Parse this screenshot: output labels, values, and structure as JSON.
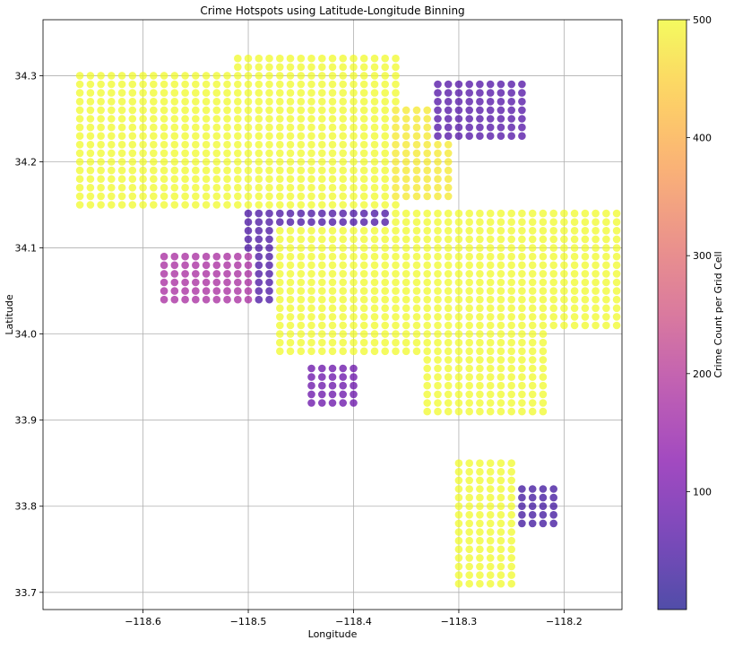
{
  "chart_data": {
    "type": "scatter",
    "title": "Crime Hotspots using Latitude-Longitude Binning",
    "xlabel": "Longitude",
    "ylabel": "Latitude",
    "xlim": [
      -118.695,
      -118.145
    ],
    "ylim": [
      33.68,
      34.365
    ],
    "xticks": [
      -118.6,
      -118.5,
      -118.4,
      -118.3,
      -118.2
    ],
    "xtick_labels": [
      "−118.6",
      "−118.5",
      "−118.4",
      "−118.3",
      "−118.2"
    ],
    "yticks": [
      33.7,
      33.8,
      33.9,
      34.0,
      34.1,
      34.2,
      34.3
    ],
    "ytick_labels": [
      "33.7",
      "33.8",
      "33.9",
      "34.0",
      "34.1",
      "34.2",
      "34.3"
    ],
    "grid": true,
    "bin_size": 0.01,
    "colormap": "plasma",
    "colorbar": {
      "label": "Crime Count per Grid Cell",
      "min": 0,
      "max": 500,
      "ticks": [
        100,
        200,
        300,
        400,
        500
      ],
      "tick_labels": [
        "100",
        "200",
        "300",
        "400",
        "500"
      ]
    },
    "region_counts": [
      {
        "lon": [
          -118.66,
          -118.51
        ],
        "lat": [
          34.15,
          34.3
        ],
        "count": 500
      },
      {
        "lon": [
          -118.51,
          -118.36
        ],
        "lat": [
          34.15,
          34.32
        ],
        "count": 500
      },
      {
        "lon": [
          -118.36,
          -118.31
        ],
        "lat": [
          34.16,
          34.26
        ],
        "count": 480
      },
      {
        "lon": [
          -118.5,
          -118.36
        ],
        "lat": [
          34.04,
          34.14
        ],
        "count": 50
      },
      {
        "lon": [
          -118.47,
          -118.31
        ],
        "lat": [
          33.98,
          34.12
        ],
        "count": 500
      },
      {
        "lon": [
          -118.36,
          -118.15
        ],
        "lat": [
          34.01,
          34.14
        ],
        "count": 500
      },
      {
        "lon": [
          -118.33,
          -118.22
        ],
        "lat": [
          33.91,
          34.01
        ],
        "count": 500
      },
      {
        "lon": [
          -118.3,
          -118.25
        ],
        "lat": [
          33.71,
          33.85
        ],
        "count": 500
      },
      {
        "lon": [
          -118.58,
          -118.5
        ],
        "lat": [
          34.04,
          34.09
        ],
        "count": 180
      },
      {
        "lon": [
          -118.44,
          -118.4
        ],
        "lat": [
          33.92,
          33.96
        ],
        "count": 90
      },
      {
        "lon": [
          -118.32,
          -118.24
        ],
        "lat": [
          34.23,
          34.29
        ],
        "count": 60
      },
      {
        "lon": [
          -118.24,
          -118.21
        ],
        "lat": [
          33.78,
          33.82
        ],
        "count": 40
      }
    ]
  }
}
